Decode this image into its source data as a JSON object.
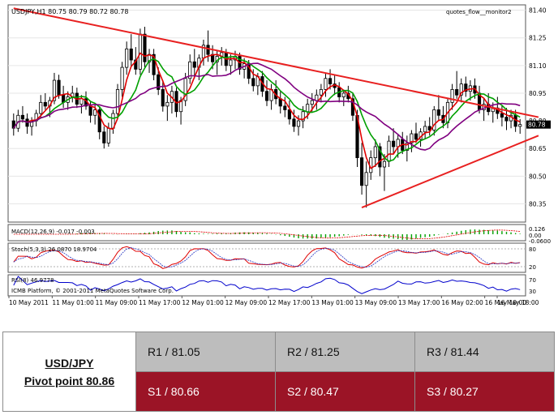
{
  "chart_data": {
    "type": "candlestick",
    "symbol_label": "USDJPY,H1  80.75 80.79 80.72 80.78",
    "indicator_label": "quotes_flow__monitor2",
    "current_price": "80.78",
    "price_axis": {
      "ticks": [
        "81.40",
        "81.25",
        "81.10",
        "80.95",
        "80.80",
        "80.65",
        "80.50",
        "80.35"
      ],
      "ylim": [
        80.26,
        81.42
      ]
    },
    "time_axis": {
      "labels": [
        "10 May 2011",
        "11 May 01:00",
        "11 May 09:00",
        "11 May 17:00",
        "12 May 01:00",
        "12 May 09:00",
        "12 May 17:00",
        "13 May 01:00",
        "13 May 09:00",
        "13 May 17:00",
        "16 May 02:00",
        "16 May 10:00",
        "16 May 18:00"
      ]
    },
    "candles": [
      [
        80.8,
        80.84,
        80.72,
        80.76
      ],
      [
        80.76,
        80.86,
        80.74,
        80.83
      ],
      [
        80.83,
        80.88,
        80.79,
        80.81
      ],
      [
        80.81,
        80.84,
        80.73,
        80.77
      ],
      [
        80.77,
        80.82,
        80.72,
        80.8
      ],
      [
        80.8,
        80.86,
        80.77,
        80.84
      ],
      [
        80.84,
        80.94,
        80.82,
        80.9
      ],
      [
        80.9,
        80.95,
        80.86,
        80.88
      ],
      [
        80.88,
        80.93,
        80.82,
        80.91
      ],
      [
        80.91,
        81.06,
        80.89,
        81.02
      ],
      [
        81.02,
        81.05,
        80.92,
        80.94
      ],
      [
        80.94,
        80.99,
        80.87,
        80.9
      ],
      [
        80.9,
        80.96,
        80.86,
        80.93
      ],
      [
        80.93,
        80.99,
        80.9,
        80.95
      ],
      [
        80.95,
        80.98,
        80.87,
        80.89
      ],
      [
        80.89,
        80.94,
        80.84,
        80.92
      ],
      [
        80.92,
        80.96,
        80.86,
        80.88
      ],
      [
        80.88,
        80.91,
        80.79,
        80.83
      ],
      [
        80.83,
        80.89,
        80.78,
        80.86
      ],
      [
        80.86,
        80.88,
        80.7,
        80.74
      ],
      [
        80.74,
        80.77,
        80.65,
        80.68
      ],
      [
        80.68,
        80.79,
        80.66,
        80.76
      ],
      [
        80.76,
        80.86,
        80.73,
        80.84
      ],
      [
        80.84,
        81.0,
        80.82,
        80.97
      ],
      [
        80.97,
        81.12,
        80.93,
        81.09
      ],
      [
        81.09,
        81.23,
        81.05,
        81.19
      ],
      [
        81.19,
        81.27,
        81.09,
        81.13
      ],
      [
        81.13,
        81.2,
        81.05,
        81.08
      ],
      [
        81.08,
        81.3,
        81.05,
        81.27
      ],
      [
        81.27,
        81.31,
        81.09,
        81.12
      ],
      [
        81.12,
        81.19,
        81.06,
        81.16
      ],
      [
        81.16,
        81.19,
        81.02,
        81.05
      ],
      [
        81.05,
        81.09,
        80.94,
        80.97
      ],
      [
        80.97,
        81.02,
        80.85,
        80.88
      ],
      [
        80.88,
        80.94,
        80.8,
        80.9
      ],
      [
        80.9,
        80.99,
        80.84,
        80.96
      ],
      [
        80.96,
        80.98,
        80.82,
        80.85
      ],
      [
        80.85,
        80.93,
        80.78,
        80.91
      ],
      [
        80.91,
        81.06,
        80.88,
        81.03
      ],
      [
        81.03,
        81.16,
        81.0,
        81.12
      ],
      [
        81.12,
        81.19,
        81.03,
        81.09
      ],
      [
        81.09,
        81.16,
        81.02,
        81.14
      ],
      [
        81.14,
        81.24,
        81.1,
        81.21
      ],
      [
        81.21,
        81.29,
        81.12,
        81.16
      ],
      [
        81.16,
        81.21,
        81.08,
        81.12
      ],
      [
        81.12,
        81.18,
        81.05,
        81.15
      ],
      [
        81.15,
        81.2,
        81.1,
        81.17
      ],
      [
        81.17,
        81.19,
        81.07,
        81.1
      ],
      [
        81.1,
        81.16,
        81.05,
        81.13
      ],
      [
        81.13,
        81.18,
        81.08,
        81.15
      ],
      [
        81.15,
        81.17,
        81.05,
        81.08
      ],
      [
        81.08,
        81.14,
        81.03,
        81.11
      ],
      [
        81.11,
        81.13,
        81.0,
        81.03
      ],
      [
        81.03,
        81.08,
        80.96,
        80.99
      ],
      [
        80.99,
        81.06,
        80.94,
        81.04
      ],
      [
        81.04,
        81.07,
        80.93,
        80.96
      ],
      [
        80.96,
        81.02,
        80.88,
        80.91
      ],
      [
        80.91,
        81.0,
        80.86,
        80.97
      ],
      [
        80.97,
        81.02,
        80.89,
        80.92
      ],
      [
        80.92,
        80.96,
        80.84,
        80.88
      ],
      [
        80.88,
        80.93,
        80.82,
        80.86
      ],
      [
        80.86,
        80.91,
        80.78,
        80.81
      ],
      [
        80.81,
        80.86,
        80.74,
        80.77
      ],
      [
        80.77,
        80.83,
        80.72,
        80.8
      ],
      [
        80.8,
        80.88,
        80.76,
        80.85
      ],
      [
        80.85,
        80.92,
        80.81,
        80.89
      ],
      [
        80.89,
        80.95,
        80.85,
        80.91
      ],
      [
        80.91,
        80.97,
        80.86,
        80.94
      ],
      [
        80.94,
        81.0,
        80.9,
        80.97
      ],
      [
        80.97,
        81.06,
        80.93,
        81.03
      ],
      [
        81.03,
        81.08,
        80.97,
        81.0
      ],
      [
        81.0,
        81.05,
        80.94,
        80.98
      ],
      [
        80.98,
        81.01,
        80.9,
        80.93
      ],
      [
        80.93,
        80.97,
        80.88,
        80.95
      ],
      [
        80.95,
        80.99,
        80.9,
        80.92
      ],
      [
        80.92,
        80.95,
        80.8,
        80.83
      ],
      [
        80.83,
        80.86,
        80.55,
        80.6
      ],
      [
        80.6,
        80.68,
        80.4,
        80.45
      ],
      [
        80.45,
        80.58,
        80.33,
        80.52
      ],
      [
        80.52,
        80.64,
        80.48,
        80.6
      ],
      [
        80.6,
        80.7,
        80.55,
        80.66
      ],
      [
        80.66,
        80.68,
        80.5,
        80.55
      ],
      [
        80.55,
        80.62,
        80.42,
        80.58
      ],
      [
        80.58,
        80.72,
        80.55,
        80.69
      ],
      [
        80.69,
        80.76,
        80.62,
        80.66
      ],
      [
        80.66,
        80.73,
        80.6,
        80.7
      ],
      [
        80.7,
        80.74,
        80.62,
        80.64
      ],
      [
        80.64,
        80.72,
        80.58,
        80.68
      ],
      [
        80.68,
        80.75,
        80.63,
        80.73
      ],
      [
        80.73,
        80.79,
        80.68,
        80.7
      ],
      [
        80.7,
        80.76,
        80.66,
        80.74
      ],
      [
        80.74,
        80.8,
        80.7,
        80.77
      ],
      [
        80.77,
        80.82,
        80.72,
        80.75
      ],
      [
        80.75,
        80.88,
        80.72,
        80.86
      ],
      [
        80.86,
        80.94,
        80.8,
        80.83
      ],
      [
        80.83,
        80.88,
        80.76,
        80.79
      ],
      [
        80.79,
        80.92,
        80.76,
        80.9
      ],
      [
        80.9,
        81.0,
        80.86,
        80.97
      ],
      [
        80.97,
        81.07,
        80.92,
        80.94
      ],
      [
        80.94,
        81.03,
        80.9,
        81.0
      ],
      [
        81.0,
        81.04,
        80.93,
        80.96
      ],
      [
        80.96,
        81.02,
        80.91,
        80.99
      ],
      [
        80.99,
        81.03,
        80.92,
        80.95
      ],
      [
        80.95,
        80.99,
        80.84,
        80.86
      ],
      [
        80.86,
        80.92,
        80.8,
        80.89
      ],
      [
        80.89,
        80.95,
        80.83,
        80.85
      ],
      [
        80.85,
        80.9,
        80.79,
        80.87
      ],
      [
        80.87,
        80.93,
        80.81,
        80.84
      ],
      [
        80.84,
        80.88,
        80.77,
        80.82
      ],
      [
        80.82,
        80.87,
        80.75,
        80.8
      ],
      [
        80.8,
        80.86,
        80.76,
        80.83
      ],
      [
        80.83,
        80.86,
        80.74,
        80.77
      ],
      [
        80.77,
        80.81,
        80.73,
        80.78
      ]
    ],
    "trendlines": {
      "upper": [
        [
          0,
          81.41
        ],
        [
          115,
          80.82
        ]
      ],
      "lower": [
        [
          77,
          80.33
        ],
        [
          115,
          80.72
        ]
      ]
    },
    "panels": {
      "macd": {
        "label": "MACD(12,26,9) -0.017 -0.003",
        "ticks": [
          "0.126",
          "0.00",
          "-0.0600"
        ]
      },
      "stoch": {
        "label": "Stoch(5,3,3) 26.0870 18.9704",
        "ticks": [
          "80",
          "20"
        ]
      },
      "rsi": {
        "label": "RSI(8) 46.9778",
        "ticks": [
          "70",
          "30"
        ]
      }
    },
    "copyright": "ICMB Platform, © 2001-2011 MetaQuotes Software Corp."
  },
  "colors": {
    "bull_candle": "#ffffff",
    "bear_candle": "#000000",
    "ma_fast": "#e00000",
    "ma_mid": "#00a000",
    "ma_slow": "#800080",
    "trendline": "#e82020",
    "macd_hist": "#00a000",
    "macd_signal": "#e00000",
    "rsi": "#0000cc",
    "r_cell_bg": "#bdbdbd",
    "s_cell_bg": "#9b1426"
  },
  "pivot_table": {
    "pair": "USD/JPY",
    "pivot": "Pivot point 80.86",
    "r1": "R1 / 81.05",
    "r2": "R2 / 81.25",
    "r3": "R3 / 81.44",
    "s1": "S1 / 80.66",
    "s2": "S2 / 80.47",
    "s3": "S3 / 80.27"
  }
}
